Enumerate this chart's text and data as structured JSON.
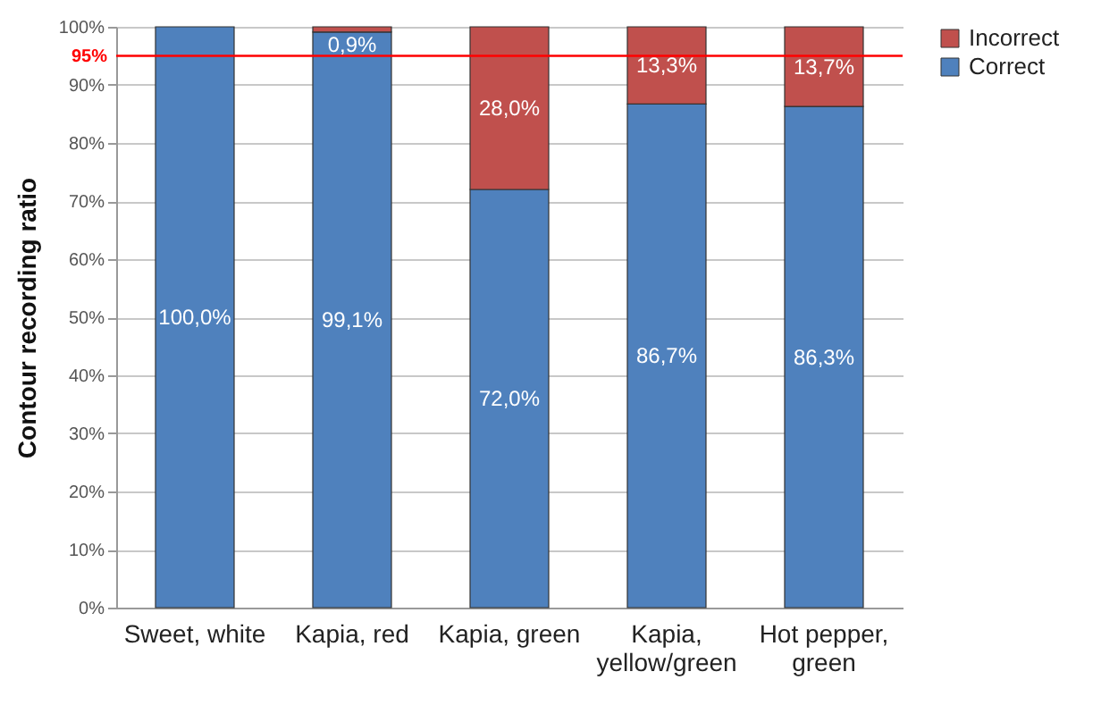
{
  "chart_data": {
    "type": "bar",
    "stacked": true,
    "ylabel": "Contour recording ratio",
    "categories": [
      "Sweet, white",
      "Kapia, red",
      "Kapia, green",
      "Kapia, yellow/green",
      "Hot pepper, green"
    ],
    "series": [
      {
        "name": "Correct",
        "color": "#4f81bd",
        "values": [
          100,
          99.1,
          72,
          86.7,
          86.3
        ],
        "value_labels": [
          "100,0%",
          "99,1%",
          "72,0%",
          "86,7%",
          "86,3%"
        ]
      },
      {
        "name": "Incorrect",
        "color": "#c0504d",
        "values": [
          0,
          0.9,
          28,
          13.3,
          13.7
        ],
        "value_labels": [
          null,
          "0,9%",
          "28,0%",
          "13,3%",
          "13,7%"
        ]
      }
    ],
    "ylim": [
      0,
      100
    ],
    "yticks": [
      {
        "value": 0,
        "label": "0%"
      },
      {
        "value": 10,
        "label": "10%"
      },
      {
        "value": 20,
        "label": "20%"
      },
      {
        "value": 30,
        "label": "30%"
      },
      {
        "value": 40,
        "label": "40%"
      },
      {
        "value": 50,
        "label": "50%"
      },
      {
        "value": 60,
        "label": "60%"
      },
      {
        "value": 70,
        "label": "70%"
      },
      {
        "value": 80,
        "label": "80%"
      },
      {
        "value": 90,
        "label": "90%"
      },
      {
        "value": 100,
        "label": "100%"
      }
    ],
    "ref_lines": [
      {
        "axis": "y",
        "value": 95,
        "label": "95%",
        "color": "#ff0000"
      }
    ],
    "grid": "y",
    "legend": "right"
  }
}
